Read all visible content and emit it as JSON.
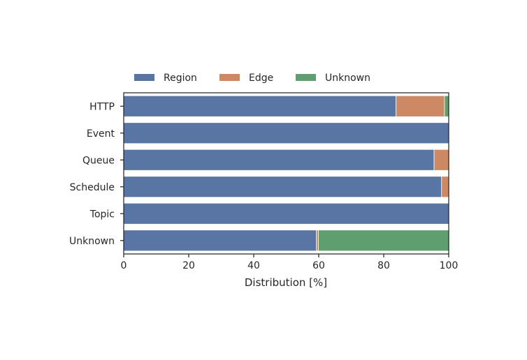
{
  "chart_data": {
    "type": "bar",
    "orientation": "horizontal",
    "stacked": true,
    "categories": [
      "HTTP",
      "Event",
      "Queue",
      "Schedule",
      "Topic",
      "Unknown"
    ],
    "series": [
      {
        "name": "Region",
        "color": "#5875a4",
        "values": [
          83.8,
          100,
          95.5,
          97.8,
          100,
          59.3
        ]
      },
      {
        "name": "Edge",
        "color": "#cc8963",
        "values": [
          14.9,
          0,
          4.5,
          2.2,
          0,
          0.6
        ]
      },
      {
        "name": "Unknown",
        "color": "#5f9e6e",
        "values": [
          1.3,
          0,
          0,
          0,
          0,
          40.1
        ]
      }
    ],
    "title": "",
    "xlabel": "Distribution [%]",
    "ylabel": "",
    "xlim": [
      0,
      100
    ],
    "xticks": [
      "0",
      "20",
      "40",
      "60",
      "80",
      "100"
    ],
    "grid": false,
    "legend": {
      "placement": "top-left, above axes",
      "columns": 3
    }
  }
}
